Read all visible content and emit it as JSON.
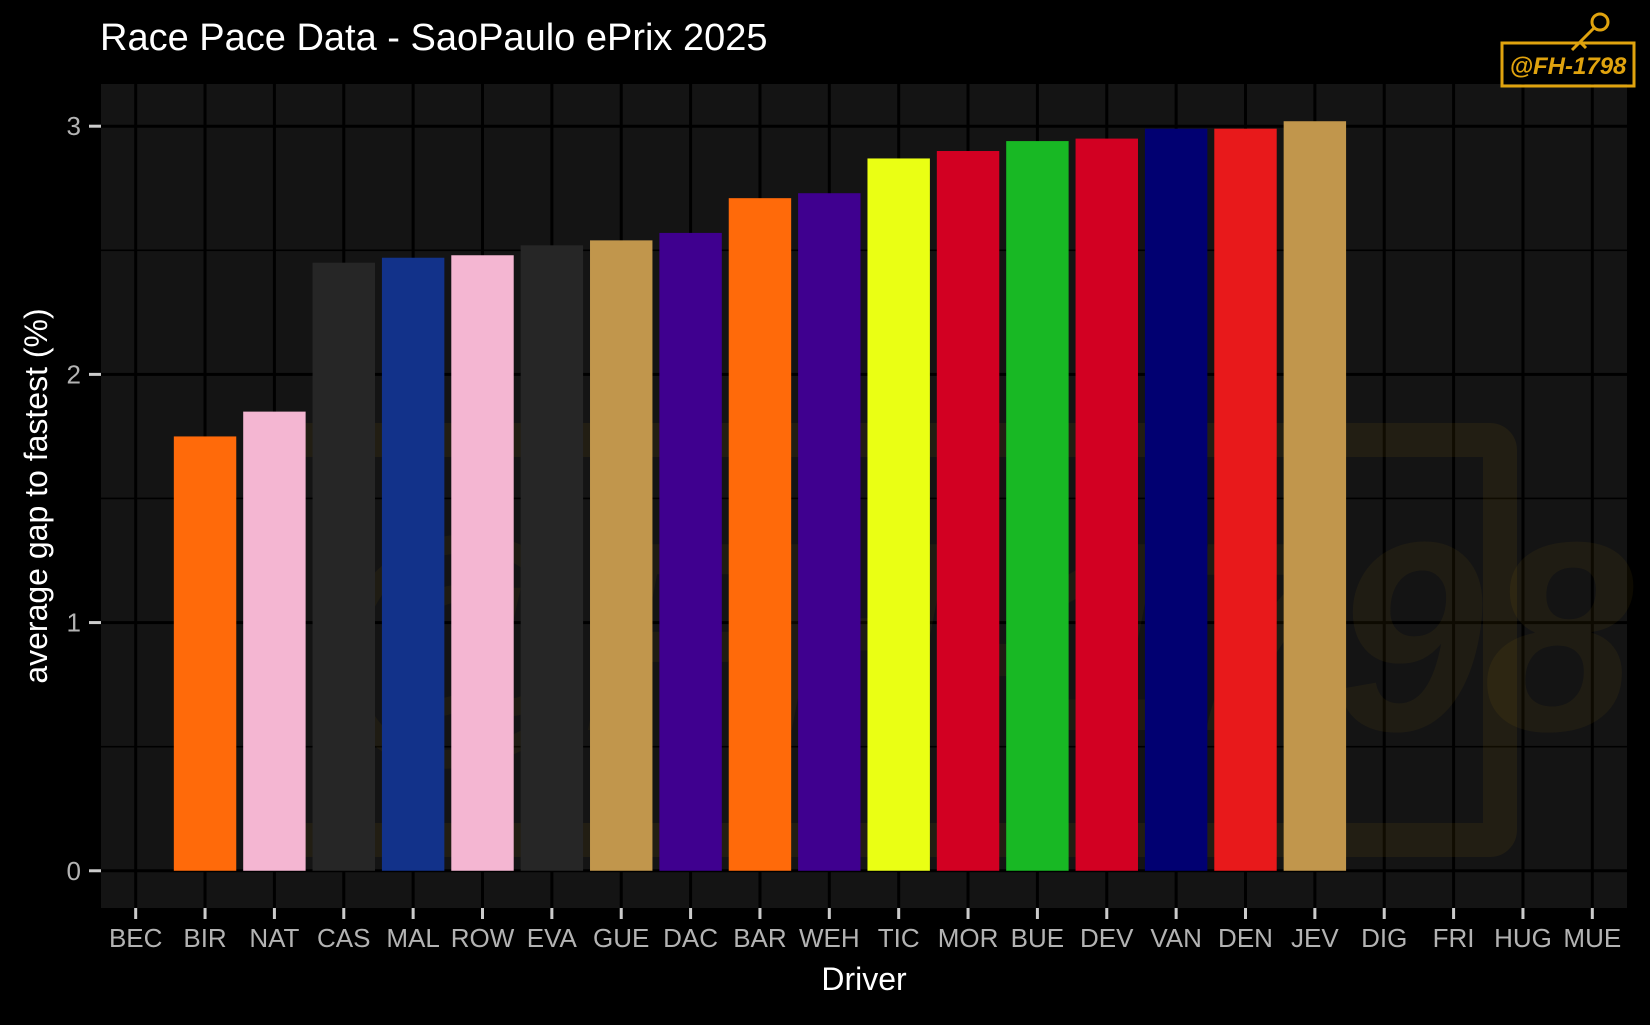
{
  "chart_data": {
    "type": "bar",
    "title": "Race Pace Data - SaoPaulo ePrix 2025",
    "xlabel": "Driver",
    "ylabel": "average gap to fastest (%)",
    "categories": [
      "BEC",
      "BIR",
      "NAT",
      "CAS",
      "MAL",
      "ROW",
      "EVA",
      "GUE",
      "DAC",
      "BAR",
      "WEH",
      "TIC",
      "MOR",
      "BUE",
      "DEV",
      "VAN",
      "DEN",
      "JEV",
      "DIG",
      "FRI",
      "HUG",
      "MUE"
    ],
    "values": [
      null,
      1.75,
      1.85,
      2.45,
      2.47,
      2.48,
      2.52,
      2.54,
      2.57,
      2.71,
      2.73,
      2.87,
      2.9,
      2.94,
      2.95,
      2.99,
      2.99,
      3.02,
      null,
      null,
      null,
      null
    ],
    "colors": [
      "#000000",
      "#ff6a0a",
      "#f4b6d2",
      "#262626",
      "#12328a",
      "#f4b6d2",
      "#262626",
      "#c1964c",
      "#3f008f",
      "#ff6a0a",
      "#3f008f",
      "#eaff14",
      "#d20022",
      "#18b824",
      "#d20022",
      "#010071",
      "#e8191b",
      "#c1964c",
      "#000000",
      "#000000",
      "#000000",
      "#000000"
    ],
    "yticks": [
      0,
      1,
      2,
      3
    ],
    "ylim": [
      -0.15,
      3.17
    ],
    "grid": true,
    "legend": "none"
  },
  "watermark": {
    "text": "@FH-1798",
    "color": "#e0a30e"
  }
}
